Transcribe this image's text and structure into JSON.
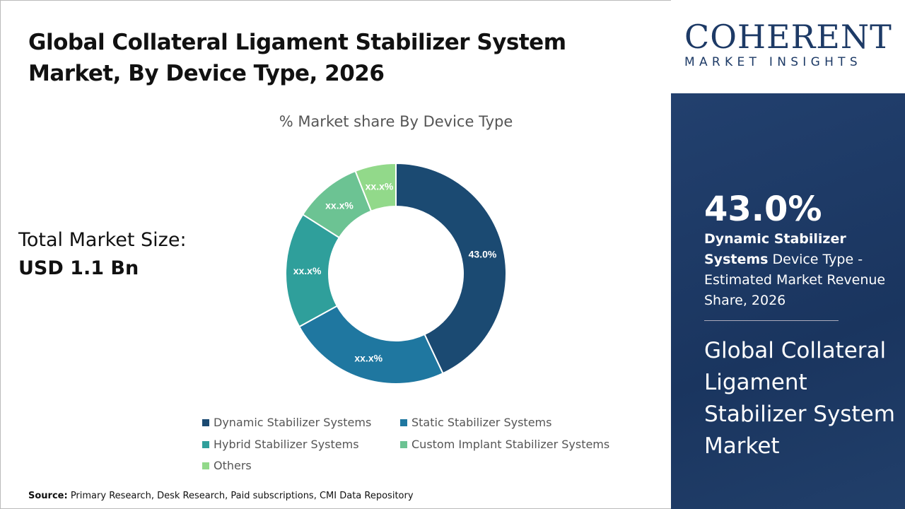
{
  "title": "Global Collateral Ligament Stabilizer System Market, By Device Type, 2026",
  "total_market": {
    "label": "Total Market Size:",
    "value": "USD 1.1 Bn"
  },
  "source": {
    "label": "Source:",
    "text": " Primary Research, Desk Research, Paid subscriptions, CMI Data Repository"
  },
  "logo": {
    "line1": "COHERENT",
    "line2": "MARKET INSIGHTS"
  },
  "highlight": {
    "percent": "43.0%",
    "bold": "Dynamic Stabilizer Systems",
    "rest": " Device Type - Estimated Market Revenue Share, 2026",
    "market": "Global Collateral Ligament Stabilizer System Market"
  },
  "chart_data": {
    "type": "pie",
    "title": "% Market share By Device Type",
    "donut": true,
    "categories": [
      "Dynamic Stabilizer Systems",
      "Static Stabilizer Systems",
      "Hybrid Stabilizer Systems",
      "Custom Implant Stabilizer Systems",
      "Others"
    ],
    "values": [
      43.0,
      24,
      17,
      10,
      6
    ],
    "data_labels": [
      "43.0%",
      "xx.x%",
      "xx.x%",
      "xx.x%",
      "xx.x%"
    ],
    "colors": [
      "#1b4a72",
      "#1f77a0",
      "#2f9f9b",
      "#6cc393",
      "#92d98a"
    ],
    "legend": "bottom"
  }
}
